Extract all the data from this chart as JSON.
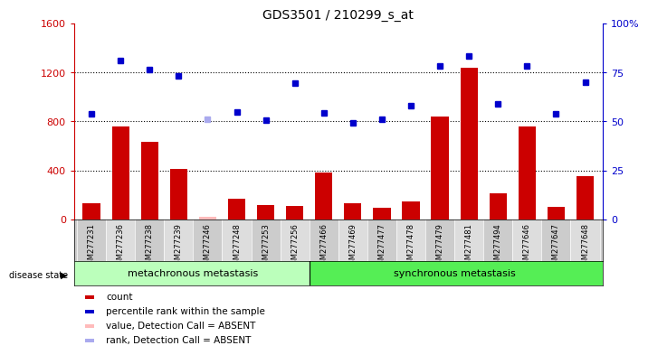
{
  "title": "GDS3501 / 210299_s_at",
  "samples": [
    "GSM277231",
    "GSM277236",
    "GSM277238",
    "GSM277239",
    "GSM277246",
    "GSM277248",
    "GSM277253",
    "GSM277256",
    "GSM277466",
    "GSM277469",
    "GSM277477",
    "GSM277478",
    "GSM277479",
    "GSM277481",
    "GSM277494",
    "GSM277646",
    "GSM277647",
    "GSM277648"
  ],
  "bar_values": [
    130,
    760,
    630,
    410,
    20,
    170,
    120,
    110,
    380,
    135,
    95,
    145,
    840,
    1240,
    215,
    760,
    100,
    355
  ],
  "bar_absent": [
    false,
    false,
    false,
    false,
    true,
    false,
    false,
    false,
    false,
    false,
    false,
    false,
    false,
    false,
    false,
    false,
    false,
    false
  ],
  "dot_values": [
    860,
    1300,
    1220,
    1175,
    820,
    880,
    810,
    1115,
    870,
    790,
    815,
    930,
    1255,
    1330,
    940,
    1250,
    860,
    1120
  ],
  "dot_absent": [
    false,
    false,
    false,
    false,
    true,
    false,
    false,
    false,
    false,
    false,
    false,
    false,
    false,
    false,
    false,
    false,
    false,
    false
  ],
  "group1_count": 8,
  "group2_count": 10,
  "group1_label": "metachronous metastasis",
  "group2_label": "synchronous metastasis",
  "disease_state_label": "disease state",
  "ylim": [
    0,
    1600
  ],
  "yticks_left": [
    0,
    400,
    800,
    1200,
    1600
  ],
  "ytick_labels_left": [
    "0",
    "400",
    "800",
    "1200",
    "1600"
  ],
  "yticks_right_vals": [
    0,
    400,
    800,
    1200,
    1600
  ],
  "ytick_labels_right": [
    "0",
    "25",
    "50",
    "75",
    "100%"
  ],
  "bar_color": "#cc0000",
  "bar_absent_color": "#ffbbbb",
  "dot_color": "#0000cc",
  "dot_absent_color": "#aaaaee",
  "group1_bg": "#bbffbb",
  "group2_bg": "#55ee55",
  "legend_items": [
    {
      "label": "count",
      "color": "#cc0000"
    },
    {
      "label": "percentile rank within the sample",
      "color": "#0000cc"
    },
    {
      "label": "value, Detection Call = ABSENT",
      "color": "#ffbbbb"
    },
    {
      "label": "rank, Detection Call = ABSENT",
      "color": "#aaaaee"
    }
  ],
  "left_tick_color": "#cc0000",
  "right_tick_color": "#0000cc",
  "plot_bg": "#ffffff",
  "label_bg": "#cccccc"
}
